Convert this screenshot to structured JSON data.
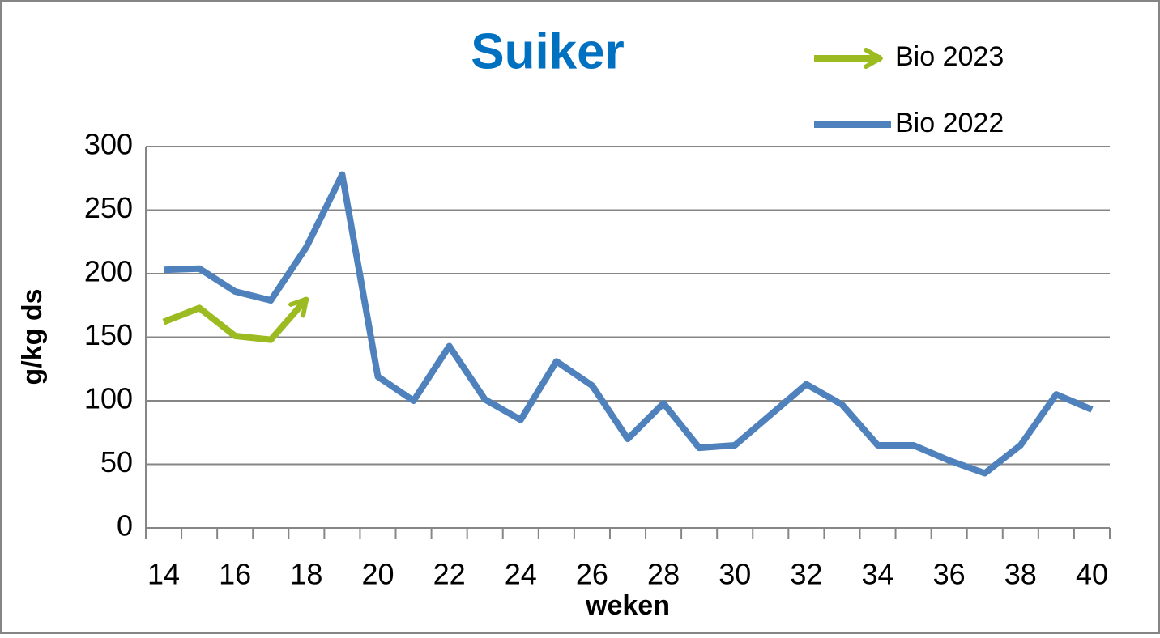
{
  "chart_data": {
    "type": "line",
    "title": "Suiker",
    "x_label": "weken",
    "y_label": "g/kg ds",
    "categories": [
      "14",
      null,
      "16",
      null,
      "18",
      null,
      "20",
      null,
      "22",
      null,
      "24",
      null,
      "26",
      null,
      "28",
      null,
      "30",
      null,
      "32",
      null,
      "34",
      null,
      "36",
      null,
      "38",
      null,
      "40"
    ],
    "series": [
      {
        "name": "Bio 2023",
        "color": "#9bbb21",
        "end_marker": "arrow",
        "values": [
          162,
          173,
          151,
          148,
          180,
          null,
          null,
          null,
          null,
          null,
          null,
          null,
          null,
          null,
          null,
          null,
          null,
          null,
          null,
          null,
          null,
          null,
          null,
          null,
          null,
          null,
          null
        ]
      },
      {
        "name": "Bio 2022",
        "color": "#4f81bd",
        "values": [
          203,
          204,
          186,
          179,
          221,
          278,
          119,
          100,
          143,
          101,
          85,
          131,
          112,
          70,
          98,
          63,
          65,
          89,
          113,
          97,
          65,
          65,
          53,
          43,
          65,
          105,
          93
        ]
      }
    ],
    "ylim": [
      0,
      300
    ],
    "yticks": [
      0,
      50,
      100,
      150,
      200,
      250,
      300
    ],
    "grid": true,
    "legend": "top-right"
  }
}
